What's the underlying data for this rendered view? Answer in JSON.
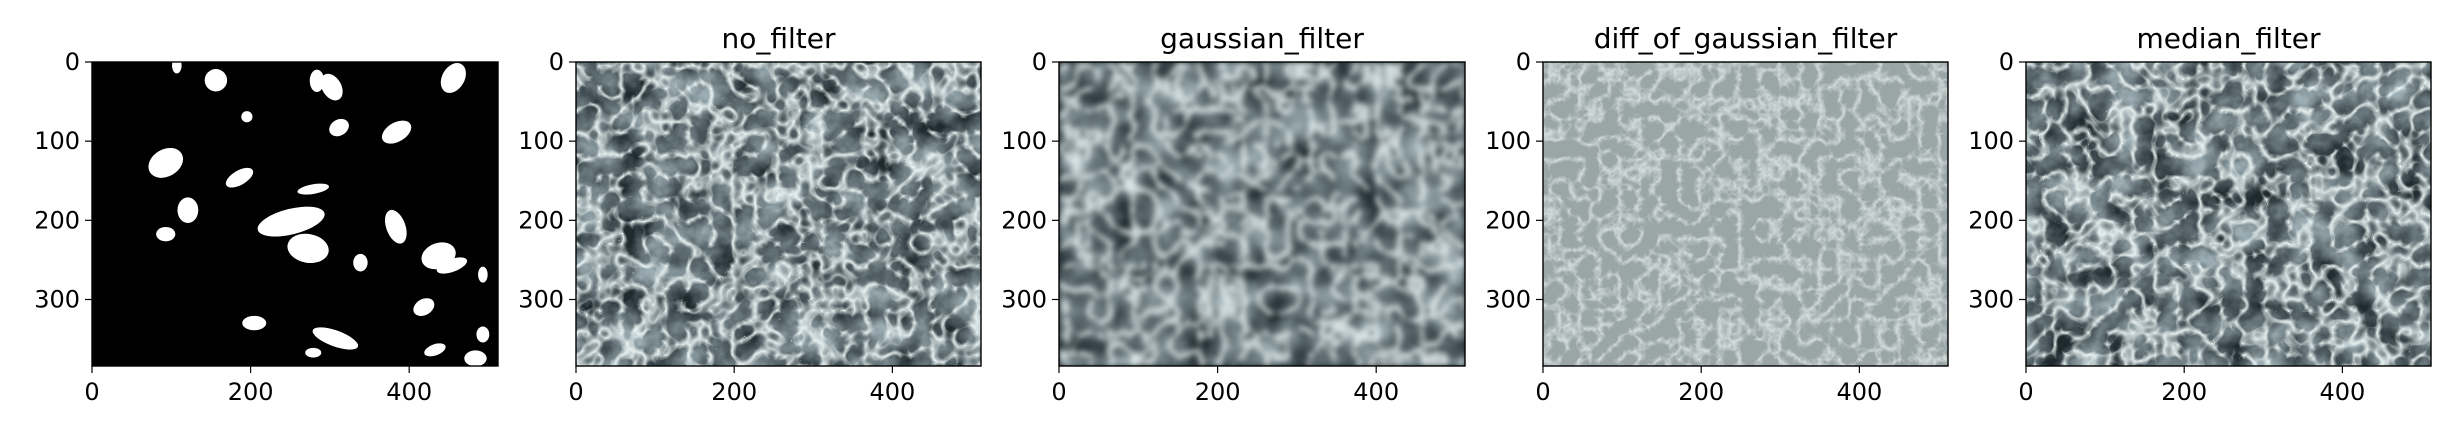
{
  "chart_data": [
    {
      "type": "heatmap",
      "title": "",
      "image": "binary mask",
      "colormap": "gray",
      "xlim": [
        0,
        512
      ],
      "ylim": [
        384,
        0
      ],
      "xticks": [
        0,
        200,
        400
      ],
      "yticks": [
        0,
        100,
        200,
        300
      ],
      "xtick_labels": [
        "0",
        "200",
        "400"
      ],
      "ytick_labels": [
        "0",
        "100",
        "200",
        "300"
      ]
    },
    {
      "type": "heatmap",
      "title": "no_filter",
      "image": "grayscale microscopy tissue",
      "colormap": "bone",
      "xlim": [
        0,
        512
      ],
      "ylim": [
        384,
        0
      ],
      "xticks": [
        0,
        200,
        400
      ],
      "yticks": [
        0,
        100,
        200,
        300
      ],
      "xtick_labels": [
        "0",
        "200",
        "400"
      ],
      "ytick_labels": [
        "0",
        "100",
        "200",
        "300"
      ]
    },
    {
      "type": "heatmap",
      "title": "gaussian_filter",
      "image": "grayscale microscopy tissue, blurred",
      "colormap": "bone",
      "xlim": [
        0,
        512
      ],
      "ylim": [
        384,
        0
      ],
      "xticks": [
        0,
        200,
        400
      ],
      "yticks": [
        0,
        100,
        200,
        300
      ],
      "xtick_labels": [
        "0",
        "200",
        "400"
      ],
      "ytick_labels": [
        "0",
        "100",
        "200",
        "300"
      ]
    },
    {
      "type": "heatmap",
      "title": "diff_of_gaussian_filter",
      "image": "edge map, mid-gray background",
      "colormap": "bone",
      "xlim": [
        0,
        512
      ],
      "ylim": [
        384,
        0
      ],
      "xticks": [
        0,
        200,
        400
      ],
      "yticks": [
        0,
        100,
        200,
        300
      ],
      "xtick_labels": [
        "0",
        "200",
        "400"
      ],
      "ytick_labels": [
        "0",
        "100",
        "200",
        "300"
      ]
    },
    {
      "type": "heatmap",
      "title": "median_filter",
      "image": "grayscale microscopy tissue, median filtered",
      "colormap": "bone",
      "xlim": [
        0,
        512
      ],
      "ylim": [
        384,
        0
      ],
      "xticks": [
        0,
        200,
        400
      ],
      "yticks": [
        0,
        100,
        200,
        300
      ],
      "xtick_labels": [
        "0",
        "200",
        "400"
      ],
      "ytick_labels": [
        "0",
        "100",
        "200",
        "300"
      ]
    }
  ]
}
